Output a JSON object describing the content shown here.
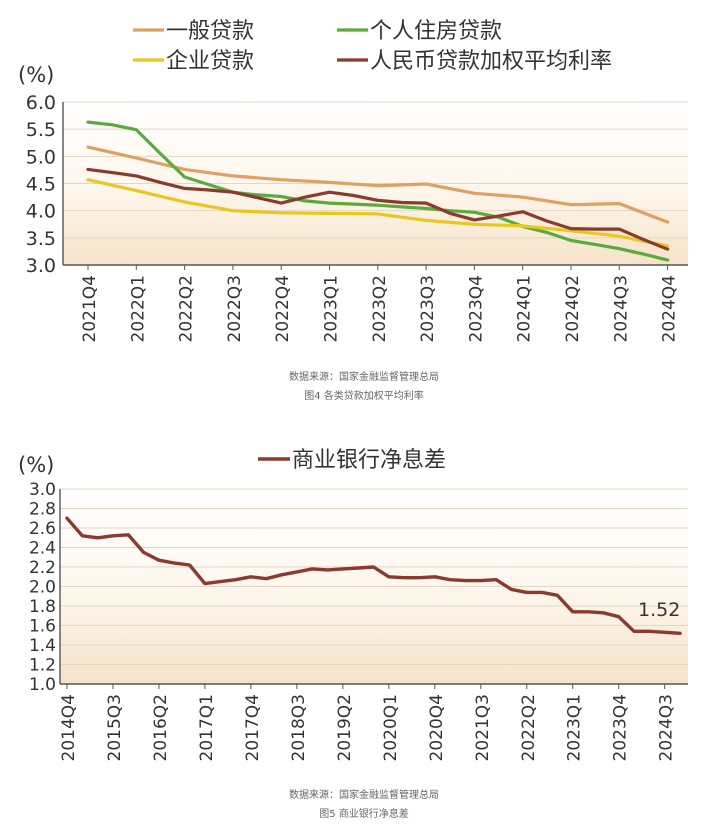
{
  "figure4": {
    "source": "数据来源：国家金融监督管理总局",
    "caption": "图4 各类贷款加权平均利率",
    "chart_data": {
      "type": "line",
      "unit_label": "(%)",
      "ylim": [
        3.0,
        6.0
      ],
      "yticks": [
        "3.0",
        "3.5",
        "4.0",
        "4.5",
        "5.0",
        "5.5",
        "6.0"
      ],
      "categories": [
        "2021Q4",
        "2022Q1",
        "2022Q2",
        "2022Q3",
        "2022Q4",
        "2023Q1",
        "2023Q2",
        "2023Q3",
        "2023Q4",
        "2024Q1",
        "2024Q2",
        "2024Q3",
        "2024Q4"
      ],
      "grid": true,
      "legend": "top",
      "series": [
        {
          "name": "一般贷款",
          "color": "#e0a060",
          "x": [
            0,
            1,
            2,
            3,
            4,
            5,
            6,
            7,
            8,
            9,
            10,
            11,
            12
          ],
          "values": [
            5.17,
            4.97,
            4.76,
            4.64,
            4.57,
            4.52,
            4.46,
            4.49,
            4.32,
            4.25,
            4.11,
            4.13,
            3.79
          ]
        },
        {
          "name": "个人住房贷款",
          "color": "#5aaa3c",
          "x": [
            0,
            0.5,
            1,
            1.5,
            2,
            2.5,
            3,
            3.5,
            4,
            4.5,
            5,
            5.5,
            6,
            6.5,
            7,
            7.5,
            8,
            8.5,
            9,
            9.5,
            10,
            10.5,
            11,
            11.5,
            12
          ],
          "values": [
            5.63,
            5.58,
            5.49,
            5.05,
            4.62,
            4.48,
            4.34,
            4.29,
            4.26,
            4.18,
            4.14,
            4.12,
            4.1,
            4.07,
            4.04,
            4.0,
            3.97,
            3.88,
            3.71,
            3.6,
            3.45,
            3.38,
            3.3,
            3.2,
            3.09
          ]
        },
        {
          "name": "企业贷款",
          "color": "#e8c81c",
          "x": [
            0,
            1,
            2,
            3,
            4,
            5,
            6,
            7,
            8,
            9,
            10,
            11,
            12
          ],
          "values": [
            4.57,
            4.37,
            4.16,
            4.0,
            3.96,
            3.95,
            3.94,
            3.82,
            3.75,
            3.72,
            3.63,
            3.53,
            3.35
          ]
        },
        {
          "name": "人民币贷款加权平均利率",
          "color": "#8b3a2e",
          "x": [
            0,
            0.5,
            1,
            1.5,
            2,
            2.5,
            3,
            3.5,
            4,
            4.5,
            5,
            5.5,
            6,
            6.5,
            7,
            7.5,
            8,
            8.5,
            9,
            9.5,
            10,
            10.5,
            11,
            11.5,
            12
          ],
          "values": [
            4.76,
            4.7,
            4.64,
            4.52,
            4.41,
            4.38,
            4.34,
            4.24,
            4.14,
            4.25,
            4.34,
            4.28,
            4.19,
            4.15,
            4.14,
            3.95,
            3.83,
            3.9,
            3.98,
            3.81,
            3.67,
            3.66,
            3.66,
            3.47,
            3.29
          ]
        }
      ]
    }
  },
  "figure5": {
    "source": "数据来源：国家金融监督管理总局",
    "caption": "图5 商业银行净息差",
    "chart_data": {
      "type": "line",
      "unit_label": "(%)",
      "ylim": [
        1.0,
        3.0
      ],
      "yticks": [
        "1.0",
        "1.2",
        "1.4",
        "1.6",
        "1.8",
        "2.0",
        "2.2",
        "2.4",
        "2.6",
        "2.8",
        "3.0"
      ],
      "quarter_tick_labels": [
        "2014Q4",
        "2015Q3",
        "2016Q2",
        "2017Q1",
        "2017Q4",
        "2018Q3",
        "2019Q2",
        "2020Q1",
        "2020Q4",
        "2021Q3",
        "2022Q2",
        "2023Q1",
        "2023Q4",
        "2024Q3"
      ],
      "grid": true,
      "legend": "top",
      "annotation": "1.52",
      "series": [
        {
          "name": "商业银行净息差",
          "color": "#8b3a2e",
          "values": [
            2.7,
            2.52,
            2.5,
            2.52,
            2.53,
            2.35,
            2.27,
            2.24,
            2.22,
            2.03,
            2.05,
            2.07,
            2.1,
            2.08,
            2.12,
            2.15,
            2.18,
            2.17,
            2.18,
            2.19,
            2.2,
            2.1,
            2.09,
            2.09,
            2.1,
            2.07,
            2.06,
            2.06,
            2.07,
            1.97,
            1.94,
            1.94,
            1.91,
            1.74,
            1.74,
            1.73,
            1.69,
            1.54,
            1.54,
            1.53,
            1.52
          ]
        }
      ]
    }
  }
}
